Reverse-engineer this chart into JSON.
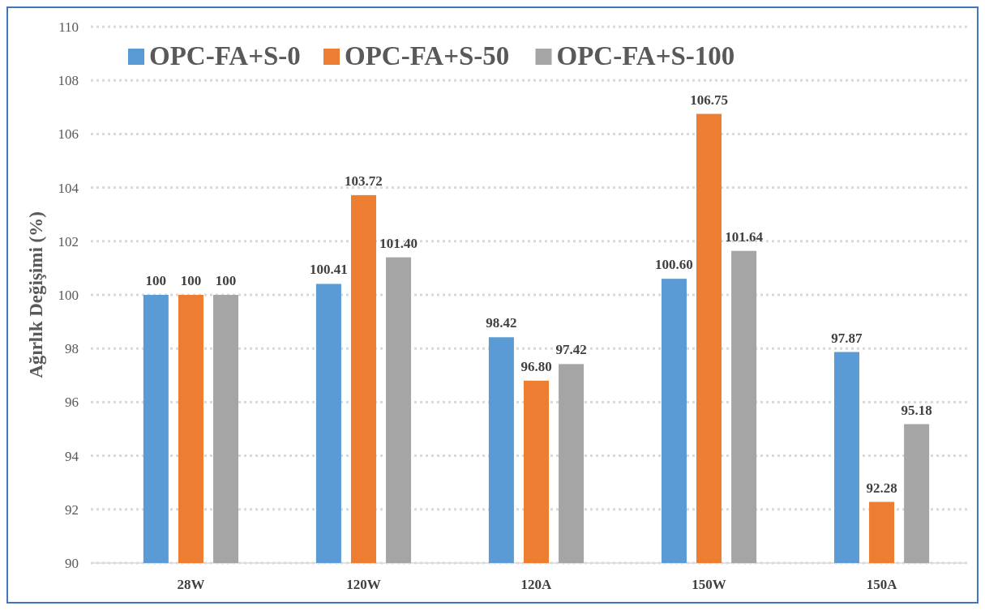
{
  "chart_data": {
    "type": "bar",
    "ylabel": "Ağırlık Değişimi (%)",
    "categories": [
      "28W",
      "120W",
      "120A",
      "150W",
      "150A"
    ],
    "series": [
      {
        "name": "OPC-FA+S-0",
        "color": "#5b9bd5",
        "values": [
          100,
          100.41,
          98.42,
          100.6,
          97.87
        ],
        "value_labels": [
          "100",
          "100.41",
          "98.42",
          "100.60",
          "97.87"
        ]
      },
      {
        "name": "OPC-FA+S-50",
        "color": "#ed7d31",
        "values": [
          100,
          103.72,
          96.8,
          106.75,
          92.28
        ],
        "value_labels": [
          "100",
          "103.72",
          "96.80",
          "106.75",
          "92.28"
        ]
      },
      {
        "name": "OPC-FA+S-100",
        "color": "#a5a5a5",
        "values": [
          100,
          101.4,
          97.42,
          101.64,
          95.18
        ],
        "value_labels": [
          "100",
          "101.40",
          "97.42",
          "101.64",
          "95.18"
        ]
      }
    ],
    "ylim": [
      90,
      110
    ],
    "yticks": [
      90,
      92,
      94,
      96,
      98,
      100,
      102,
      104,
      106,
      108,
      110
    ],
    "grid": "y",
    "legend": "top left"
  }
}
